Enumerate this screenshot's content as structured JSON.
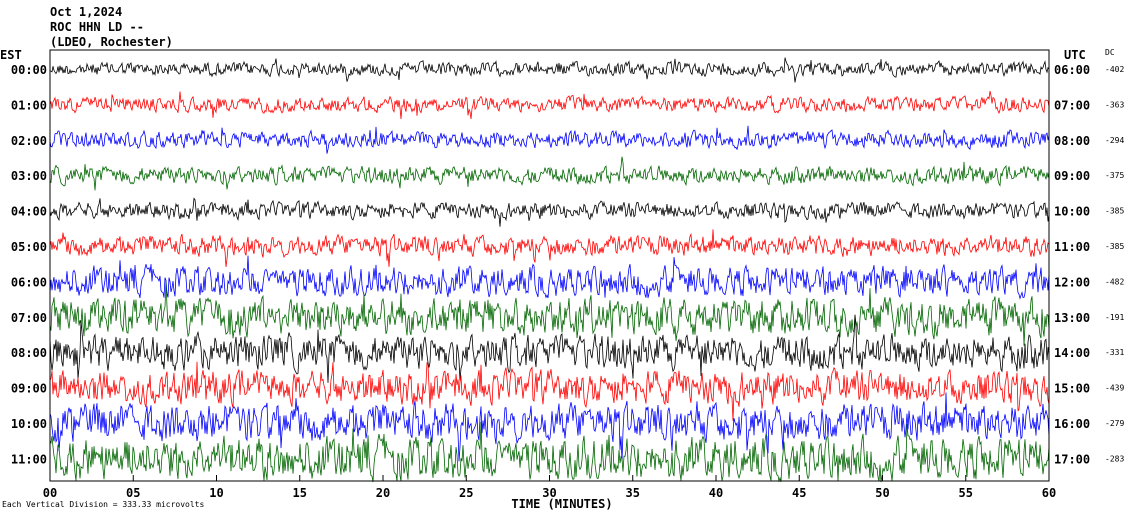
{
  "header": {
    "date": "Oct 1,2024",
    "station": "ROC HHN LD --",
    "network": "(LDEO, Rochester)"
  },
  "left_axis_title": "EST",
  "right_axis_title": "UTC",
  "offset_title": "DC",
  "footer_note": "Each Vertical Division = 333.33 microvolts",
  "chart_data": {
    "type": "line",
    "title": "Oct 1,2024",
    "xlabel": "TIME (MINUTES)",
    "x_ticks": [
      "00",
      "05",
      "10",
      "15",
      "20",
      "25",
      "30",
      "35",
      "40",
      "45",
      "50",
      "55",
      "60"
    ],
    "xlim": [
      0,
      60
    ],
    "trace_colors": [
      "#000000",
      "#ff0000",
      "#0000ff",
      "#006600"
    ],
    "rows": [
      {
        "est": "00:00",
        "utc": "06:00",
        "dc": "-402",
        "amplitude": 0.25,
        "color": "#000000"
      },
      {
        "est": "01:00",
        "utc": "07:00",
        "dc": "-363",
        "amplitude": 0.28,
        "color": "#ff0000"
      },
      {
        "est": "02:00",
        "utc": "08:00",
        "dc": "-294",
        "amplitude": 0.3,
        "color": "#0000ff"
      },
      {
        "est": "03:00",
        "utc": "09:00",
        "dc": "-375",
        "amplitude": 0.32,
        "color": "#006600"
      },
      {
        "est": "04:00",
        "utc": "10:00",
        "dc": "-385",
        "amplitude": 0.3,
        "color": "#000000"
      },
      {
        "est": "05:00",
        "utc": "11:00",
        "dc": "-385",
        "amplitude": 0.38,
        "color": "#ff0000"
      },
      {
        "est": "06:00",
        "utc": "12:00",
        "dc": "-482",
        "amplitude": 0.55,
        "color": "#0000ff"
      },
      {
        "est": "07:00",
        "utc": "13:00",
        "dc": "-191",
        "amplitude": 0.7,
        "color": "#006600"
      },
      {
        "est": "08:00",
        "utc": "14:00",
        "dc": "-331",
        "amplitude": 0.65,
        "color": "#000000"
      },
      {
        "est": "09:00",
        "utc": "15:00",
        "dc": "-439",
        "amplitude": 0.62,
        "color": "#ff0000"
      },
      {
        "est": "10:00",
        "utc": "16:00",
        "dc": "-279",
        "amplitude": 0.7,
        "color": "#0000ff"
      },
      {
        "est": "11:00",
        "utc": "17:00",
        "dc": "-283",
        "amplitude": 0.78,
        "color": "#006600"
      }
    ]
  }
}
